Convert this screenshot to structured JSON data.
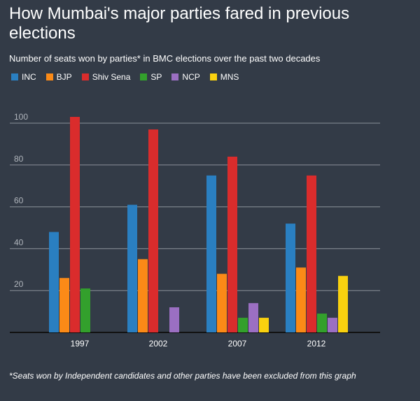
{
  "title": "How Mumbai's major parties fared in previous elections",
  "subtitle": "Number of seats won by parties* in BMC elections over the past two decades",
  "footnote": "*Seats won by Independent candidates and other parties have been excluded from this graph",
  "chart_data": {
    "type": "bar",
    "categories": [
      "1997",
      "2002",
      "2007",
      "2012"
    ],
    "series": [
      {
        "name": "INC",
        "color": "#2a7fc1",
        "values": [
          48,
          61,
          75,
          52
        ]
      },
      {
        "name": "BJP",
        "color": "#fb8a17",
        "values": [
          26,
          35,
          28,
          31
        ]
      },
      {
        "name": "Shiv Sena",
        "color": "#da2c2c",
        "values": [
          103,
          97,
          84,
          75
        ]
      },
      {
        "name": "SP",
        "color": "#33a02c",
        "values": [
          21,
          0,
          7,
          9
        ]
      },
      {
        "name": "NCP",
        "color": "#9b6fc2",
        "values": [
          0,
          12,
          14,
          7
        ]
      },
      {
        "name": "MNS",
        "color": "#f9d10f",
        "values": [
          0,
          0,
          7,
          27
        ]
      }
    ],
    "ylim": [
      0,
      110
    ],
    "yticks": [
      "20",
      "40",
      "60",
      "80",
      "100"
    ],
    "grid": true,
    "legend_position": "top-left"
  }
}
